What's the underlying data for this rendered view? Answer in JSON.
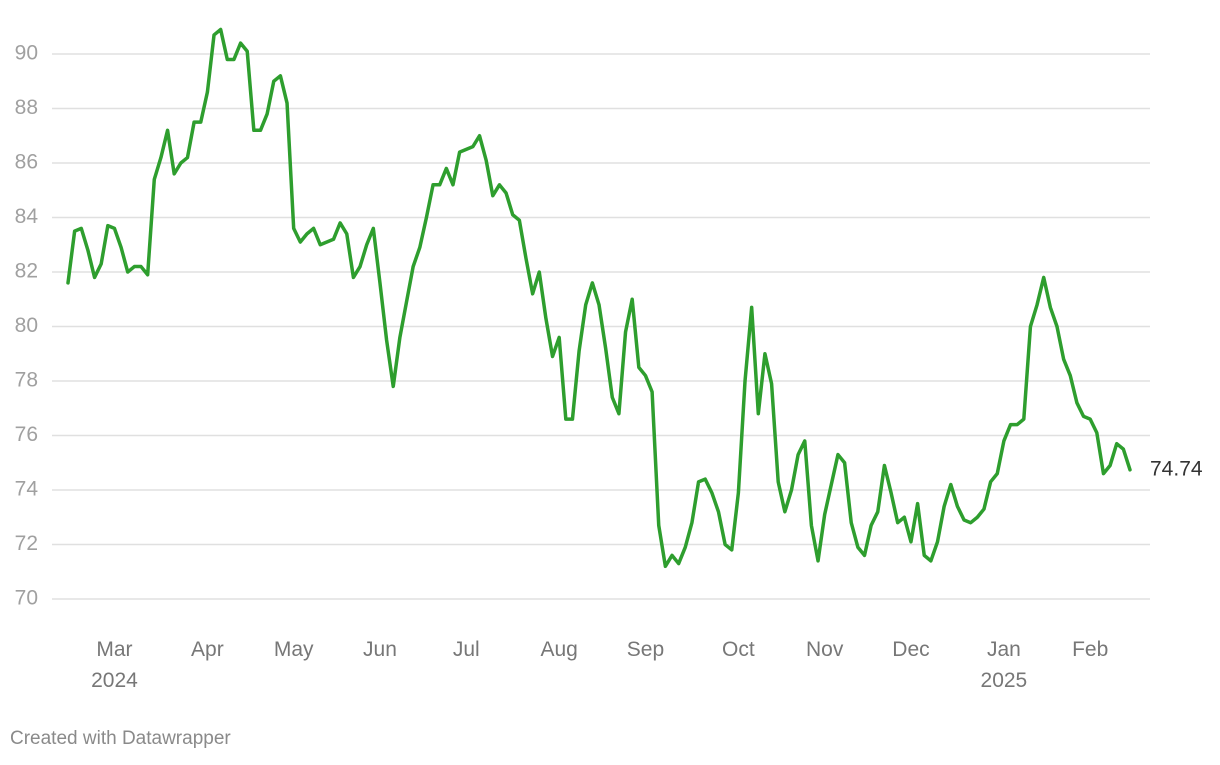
{
  "chart_data": {
    "type": "line",
    "color": "#2e9e2e",
    "grid": true,
    "credit": "Created with Datawrapper",
    "ylim": [
      69,
      91.5
    ],
    "yticks": [
      70,
      72,
      74,
      76,
      78,
      80,
      82,
      84,
      86,
      88,
      90
    ],
    "categories": [
      null,
      null,
      null,
      null,
      null,
      null,
      null,
      "Mar\n2024",
      null,
      null,
      null,
      null,
      null,
      null,
      null,
      null,
      null,
      null,
      null,
      null,
      null,
      "Apr",
      null,
      null,
      null,
      null,
      null,
      null,
      null,
      null,
      null,
      null,
      null,
      null,
      "May",
      null,
      null,
      null,
      null,
      null,
      null,
      null,
      null,
      null,
      null,
      null,
      null,
      "Jun",
      null,
      null,
      null,
      null,
      null,
      null,
      null,
      null,
      null,
      null,
      null,
      null,
      "Jul",
      null,
      null,
      null,
      null,
      null,
      null,
      null,
      null,
      null,
      null,
      null,
      null,
      null,
      "Aug",
      null,
      null,
      null,
      null,
      null,
      null,
      null,
      null,
      null,
      null,
      null,
      null,
      "Sep",
      null,
      null,
      null,
      null,
      null,
      null,
      null,
      null,
      null,
      null,
      null,
      null,
      null,
      "Oct",
      null,
      null,
      null,
      null,
      null,
      null,
      null,
      null,
      null,
      null,
      null,
      null,
      "Nov",
      null,
      null,
      null,
      null,
      null,
      null,
      null,
      null,
      null,
      null,
      null,
      null,
      "Dec",
      null,
      null,
      null,
      null,
      null,
      null,
      null,
      null,
      null,
      null,
      null,
      null,
      null,
      "Jan\n2025",
      null,
      null,
      null,
      null,
      null,
      null,
      null,
      null,
      null,
      null,
      null,
      null,
      "Feb",
      null,
      null,
      null,
      null,
      null,
      null
    ],
    "values": [
      81.6,
      83.5,
      83.6,
      82.8,
      81.8,
      82.3,
      83.7,
      83.6,
      82.9,
      82.0,
      82.2,
      82.2,
      81.9,
      85.4,
      86.2,
      87.2,
      85.6,
      86.0,
      86.2,
      87.5,
      87.5,
      88.6,
      90.7,
      90.9,
      89.8,
      89.8,
      90.4,
      90.1,
      87.2,
      87.2,
      87.8,
      89.0,
      89.2,
      88.2,
      83.6,
      83.1,
      83.4,
      83.6,
      83.0,
      83.1,
      83.2,
      83.8,
      83.4,
      81.8,
      82.2,
      83.0,
      83.6,
      81.6,
      79.5,
      77.8,
      79.6,
      80.9,
      82.2,
      82.9,
      84.0,
      85.2,
      85.2,
      85.8,
      85.2,
      86.4,
      86.5,
      86.6,
      87.0,
      86.1,
      84.8,
      85.2,
      84.9,
      84.1,
      83.9,
      82.5,
      81.2,
      82.0,
      80.3,
      78.9,
      79.6,
      76.6,
      76.6,
      79.1,
      80.8,
      81.6,
      80.8,
      79.2,
      77.4,
      76.8,
      79.8,
      81.0,
      78.5,
      78.2,
      77.6,
      72.7,
      71.2,
      71.6,
      71.3,
      71.9,
      72.8,
      74.3,
      74.4,
      73.9,
      73.2,
      72.0,
      71.8,
      73.9,
      78.0,
      80.7,
      76.8,
      79.0,
      77.9,
      74.3,
      73.2,
      74.0,
      75.3,
      75.8,
      72.7,
      71.4,
      73.1,
      74.2,
      75.3,
      75.0,
      72.8,
      71.9,
      71.6,
      72.7,
      73.2,
      74.9,
      73.9,
      72.8,
      73.0,
      72.1,
      73.5,
      71.6,
      71.4,
      72.1,
      73.4,
      74.2,
      73.4,
      72.9,
      72.8,
      73.0,
      73.3,
      74.3,
      74.6,
      75.8,
      76.4,
      76.4,
      76.6,
      80.0,
      80.8,
      81.8,
      80.7,
      80.0,
      78.8,
      78.2,
      77.2,
      76.7,
      76.6,
      76.1,
      74.6,
      74.9,
      75.7,
      75.5,
      74.74
    ]
  }
}
